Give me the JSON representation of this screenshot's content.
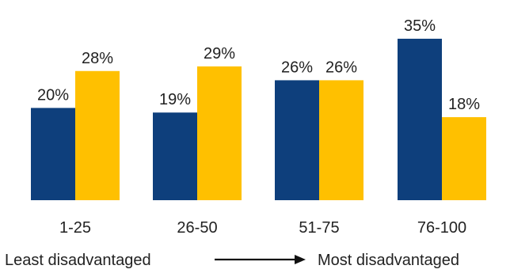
{
  "chart_data": {
    "type": "bar",
    "categories": [
      "1-25",
      "26-50",
      "51-75",
      "76-100"
    ],
    "series": [
      {
        "values": [
          20,
          19,
          26,
          35
        ],
        "labels": [
          "20%",
          "19%",
          "26%",
          "35%"
        ],
        "color": "#0e3f7c"
      },
      {
        "values": [
          28,
          29,
          26,
          18
        ],
        "labels": [
          "28%",
          "29%",
          "26%",
          "18%"
        ],
        "color": "#ffc000"
      }
    ],
    "ylim": [
      0,
      35
    ],
    "grid": false,
    "annotation": {
      "left_label": "Least disadvantaged",
      "right_label": "Most disadvantaged"
    }
  }
}
